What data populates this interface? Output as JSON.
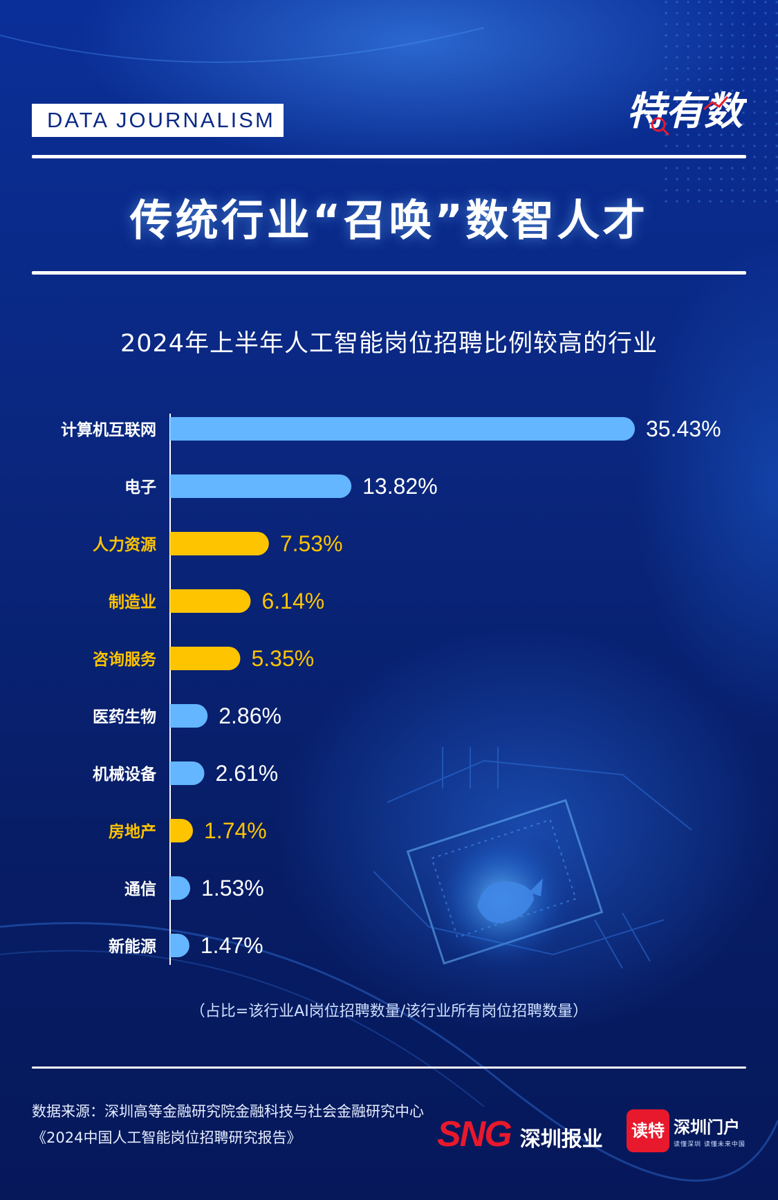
{
  "header": {
    "brand_tag": "DATA JOURNALISM",
    "logo_text": "特有数",
    "headline": "传统行业“召唤”数智人才"
  },
  "colors": {
    "background": "#0a2780",
    "bar_blue": "#63b6ff",
    "bar_gold": "#ffc400",
    "label_white": "#ffffff",
    "label_gold": "#ffc400",
    "brand_red": "#e8192c"
  },
  "chart_data": {
    "type": "bar",
    "orientation": "horizontal",
    "title": "2024年上半年人工智能岗位招聘比例较高的行业",
    "categories": [
      "计算机互联网",
      "电子",
      "人力资源",
      "制造业",
      "咨询服务",
      "医药生物",
      "机械设备",
      "房地产",
      "通信",
      "新能源"
    ],
    "values": [
      35.43,
      13.82,
      7.53,
      6.14,
      5.35,
      2.86,
      2.61,
      1.74,
      1.53,
      1.47
    ],
    "value_labels": [
      "35.43%",
      "13.82%",
      "7.53%",
      "6.14%",
      "5.35%",
      "2.86%",
      "2.61%",
      "1.74%",
      "1.53%",
      "1.47%"
    ],
    "highlight": [
      false,
      false,
      true,
      true,
      true,
      false,
      false,
      true,
      false,
      false
    ],
    "unit": "%",
    "grid": false,
    "legend": "none"
  },
  "footnote": "（占比=该行业AI岗位招聘数量/该行业所有岗位招聘数量）",
  "footer": {
    "source_line1": "数据来源：深圳高等金融研究院金融科技与社会金融研究中心",
    "source_line2": "《2024中国人工智能岗位招聘研究报告》",
    "sng_letters": "SNG",
    "sng_name": "深圳报业",
    "dute_logo": "读特",
    "portal_name": "深圳门户",
    "portal_slogan": "读懂深圳 读懂未来中国"
  }
}
